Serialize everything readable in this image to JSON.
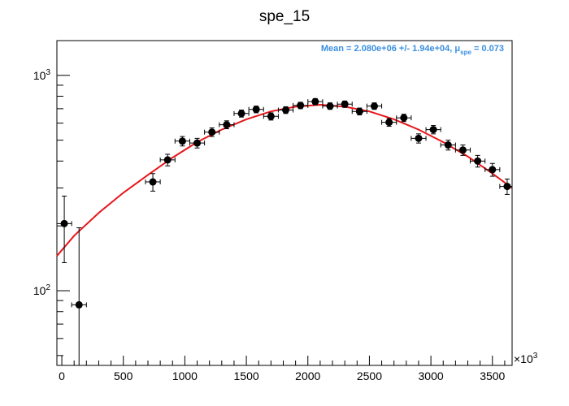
{
  "chart_data": {
    "type": "scatter",
    "title": "spe_15",
    "xlabel": "",
    "ylabel": "",
    "x_multiplier_label": "×10",
    "x_multiplier_exp": "3",
    "xlim": [
      -40,
      3660
    ],
    "ylim": [
      45,
      1450
    ],
    "y_scale": "log",
    "x_ticks": [
      0,
      500,
      1000,
      1500,
      2000,
      2500,
      3000,
      3500
    ],
    "x_tick_labels": [
      "0",
      "500",
      "1000",
      "1500",
      "2000",
      "2500",
      "3000",
      "3500"
    ],
    "y_major_ticks": [
      100,
      1000
    ],
    "y_tick_labels": [
      {
        "base": "10",
        "exp": "2"
      },
      {
        "base": "10",
        "exp": "3"
      }
    ],
    "grid": false,
    "annotation": {
      "prefix": "Mean = 2.080e+06 +/- 1.94e+04, μ",
      "sub": "spe",
      "suffix": " = 0.073",
      "color": "#3b8fe0"
    },
    "points": {
      "x": [
        20,
        140,
        740,
        860,
        980,
        1100,
        1220,
        1340,
        1460,
        1580,
        1700,
        1820,
        1940,
        2060,
        2180,
        2300,
        2420,
        2540,
        2660,
        2780,
        2900,
        3020,
        3140,
        3260,
        3380,
        3500,
        3620
      ],
      "y": [
        205,
        86,
        320,
        405,
        495,
        485,
        545,
        590,
        665,
        695,
        645,
        690,
        725,
        755,
        720,
        735,
        680,
        720,
        605,
        635,
        510,
        560,
        475,
        450,
        400,
        365,
        305
      ],
      "yerr": [
        70,
        110,
        30,
        25,
        25,
        25,
        25,
        25,
        25,
        25,
        25,
        25,
        25,
        25,
        25,
        25,
        25,
        25,
        25,
        25,
        25,
        25,
        25,
        25,
        25,
        25,
        25
      ],
      "xerr": 60,
      "color": "#000000"
    },
    "fit_curve": {
      "x": [
        -40,
        100,
        300,
        500,
        700,
        900,
        1100,
        1300,
        1500,
        1700,
        1900,
        2100,
        2300,
        2500,
        2700,
        2900,
        3100,
        3300,
        3500,
        3660
      ],
      "y": [
        145,
        180,
        230,
        285,
        345,
        415,
        490,
        560,
        625,
        680,
        715,
        730,
        715,
        680,
        625,
        560,
        490,
        420,
        350,
        300
      ],
      "color": "#e8161a"
    }
  }
}
